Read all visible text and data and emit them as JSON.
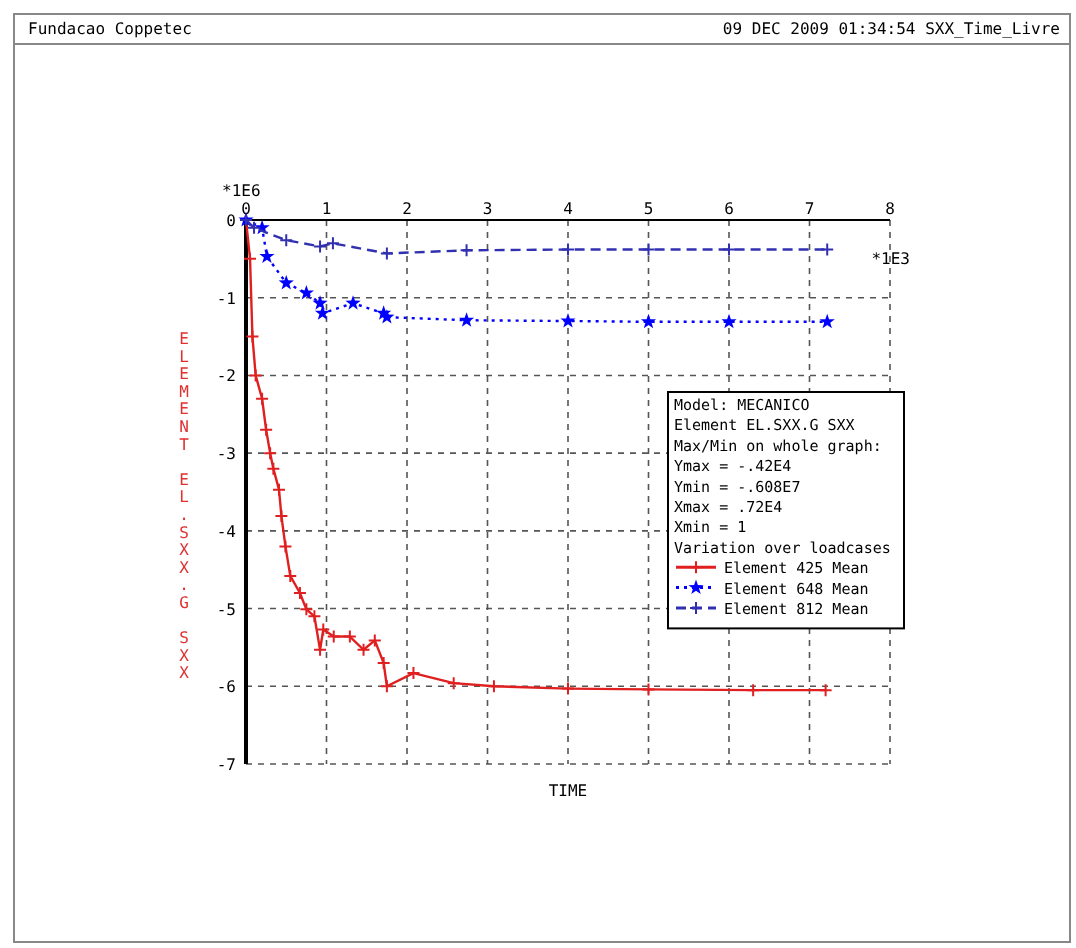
{
  "chart_data": {
    "type": "line",
    "xlabel": "TIME",
    "ylabel": "ELEMENT EL.SXX.G SXX",
    "legend_title": "Variation over loadcases",
    "legend": "right",
    "grid": true,
    "xlim": [
      0,
      8
    ],
    "xticks": [
      0,
      1,
      2,
      3,
      4,
      5,
      6,
      7,
      8
    ],
    "ylim": [
      -7,
      0
    ],
    "yticks": [
      0,
      -1,
      -2,
      -3,
      -4,
      -5,
      -6,
      -7
    ],
    "annotations": [
      "Fundacao Coppetec",
      "09 DEC 2009 01:34:54 SXX_Time_Livre",
      "*1E6",
      "*1E3",
      "Model: MECANICO",
      "Element EL.SXX.G SXX",
      "Max/Min on whole graph:",
      "Ymax = -.42E4",
      "Ymin = -.608E7",
      "Xmax = .72E4",
      "Xmin = 1"
    ],
    "series": [
      {
        "name": "Element 425 Mean",
        "color": "#e02020",
        "marker": "cross",
        "line_style": "solid",
        "x": [
          0,
          0.05,
          0.08,
          0.12,
          0.2,
          0.25,
          0.3,
          0.34,
          0.41,
          0.44,
          0.49,
          0.55,
          0.67,
          0.75,
          0.85,
          0.92,
          0.96,
          1.09,
          1.29,
          1.46,
          1.6,
          1.71,
          1.75,
          2.08,
          2.58,
          3.08,
          4,
          5,
          6.3,
          7.2
        ],
        "values": [
          0,
          -0.5,
          -1.5,
          -2.0,
          -2.3,
          -2.7,
          -3.0,
          -3.2,
          -3.47,
          -3.81,
          -4.2,
          -4.58,
          -4.8,
          -5.01,
          -5.1,
          -5.53,
          -5.27,
          -5.36,
          -5.36,
          -5.53,
          -5.41,
          -5.7,
          -6.0,
          -5.83,
          -5.96,
          -6.0,
          -6.03,
          -6.04,
          -6.05,
          -6.05
        ]
      },
      {
        "name": "Element 648 Mean",
        "color": "#0000ff",
        "marker": "star",
        "line_style": "dotted",
        "x": [
          0,
          0.2,
          0.26,
          0.5,
          0.75,
          0.92,
          0.95,
          1.33,
          1.71,
          1.75,
          2.74,
          4,
          5,
          6,
          7.22
        ],
        "values": [
          0,
          -0.1,
          -0.47,
          -0.81,
          -0.94,
          -1.07,
          -1.2,
          -1.07,
          -1.2,
          -1.25,
          -1.29,
          -1.3,
          -1.31,
          -1.31,
          -1.31
        ]
      },
      {
        "name": "Element 812 Mean",
        "color": "#3030b0",
        "marker": "cross",
        "line_style": "dashed",
        "x": [
          0,
          0.1,
          0.5,
          0.92,
          1.08,
          1.75,
          2.74,
          4,
          5,
          6,
          7.22
        ],
        "values": [
          0,
          -0.1,
          -0.26,
          -0.34,
          -0.3,
          -0.43,
          -0.39,
          -0.38,
          -0.38,
          -0.38,
          -0.38
        ]
      }
    ]
  }
}
